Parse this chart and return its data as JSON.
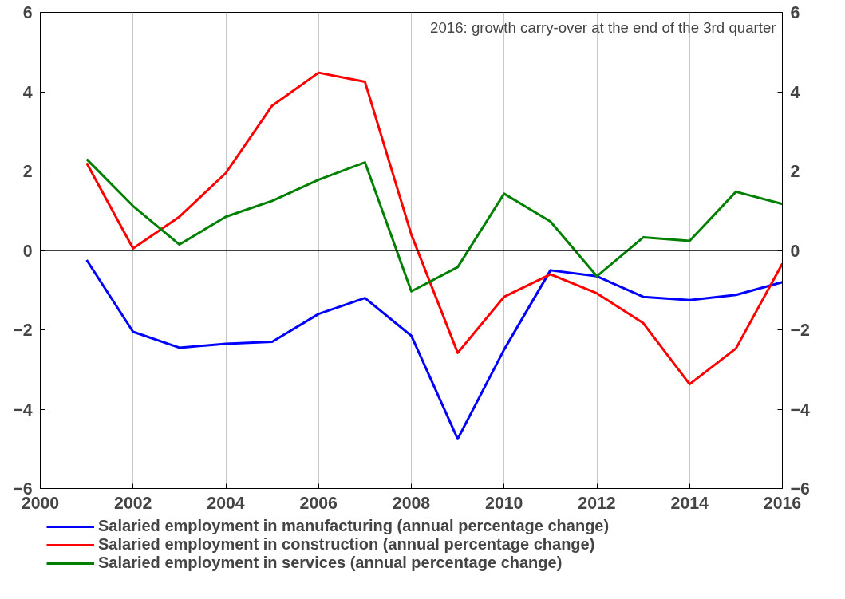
{
  "chart_data": {
    "type": "line",
    "x": [
      2001,
      2002,
      2003,
      2004,
      2005,
      2006,
      2007,
      2008,
      2009,
      2010,
      2011,
      2012,
      2013,
      2014,
      2015,
      2016
    ],
    "series": [
      {
        "name": "Salaried employment in manufacturing (annual percentage change)",
        "color": "#0000ff",
        "values": [
          -0.24,
          -2.05,
          -2.45,
          -2.35,
          -2.3,
          -1.6,
          -1.2,
          -2.15,
          -4.75,
          -2.5,
          -0.5,
          -0.65,
          -1.17,
          -1.25,
          -1.12,
          -0.8
        ]
      },
      {
        "name": "Salaried employment in construction (annual percentage change)",
        "color": "#ff0000",
        "values": [
          2.2,
          0.05,
          0.85,
          1.95,
          3.65,
          4.48,
          4.25,
          0.4,
          -2.58,
          -1.17,
          -0.6,
          -1.08,
          -1.83,
          -3.37,
          -2.47,
          -0.33
        ]
      },
      {
        "name": "Salaried employment in services (annual percentage change)",
        "color": "#008000",
        "values": [
          2.3,
          1.12,
          0.15,
          0.85,
          1.25,
          1.78,
          2.22,
          -1.03,
          -0.42,
          1.43,
          0.73,
          -0.65,
          0.33,
          0.24,
          1.48,
          1.17
        ]
      }
    ],
    "xlim": [
      2000,
      2016
    ],
    "xticks": [
      2000,
      2002,
      2004,
      2006,
      2008,
      2010,
      2012,
      2014,
      2016
    ],
    "ylim": [
      -6,
      6
    ],
    "yticks": [
      -6,
      -4,
      -2,
      0,
      2,
      4,
      6
    ],
    "y2lim": [
      -6,
      6
    ],
    "y2ticks": [
      -6,
      -4,
      -2,
      0,
      2,
      4,
      6
    ],
    "ref_lines": [
      {
        "axis": "y",
        "value": 0,
        "color": "#000000"
      }
    ],
    "annotations": [
      "2016: growth carry-over at the end of the 3rd quarter"
    ],
    "grid": "x",
    "legend": "bottom",
    "marker": "none",
    "line_style": "solid"
  }
}
